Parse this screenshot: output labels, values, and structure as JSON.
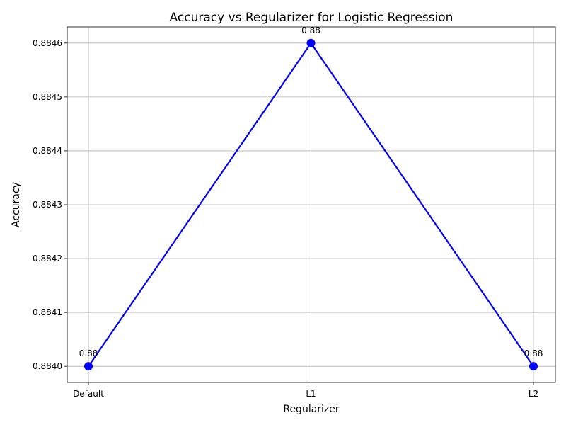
{
  "chart_data": {
    "type": "line",
    "title": "Accuracy vs Regularizer for Logistic Regression",
    "xlabel": "Regularizer",
    "ylabel": "Accuracy",
    "categories": [
      "Default",
      "L1",
      "L2"
    ],
    "series": [
      {
        "values": [
          0.884,
          0.8846,
          0.884
        ],
        "color": "#0000ff",
        "marker": "circle"
      }
    ],
    "data_labels": [
      "0.88",
      "0.88",
      "0.88"
    ],
    "ylim": [
      0.88397,
      0.88463
    ],
    "yticks": [
      0.884,
      0.8841,
      0.8842,
      0.8843,
      0.8844,
      0.8845,
      0.8846
    ],
    "ytick_labels": [
      "0.8840",
      "0.8841",
      "0.8842",
      "0.8843",
      "0.8844",
      "0.8845",
      "0.8846"
    ],
    "grid": true,
    "legend": "none"
  }
}
